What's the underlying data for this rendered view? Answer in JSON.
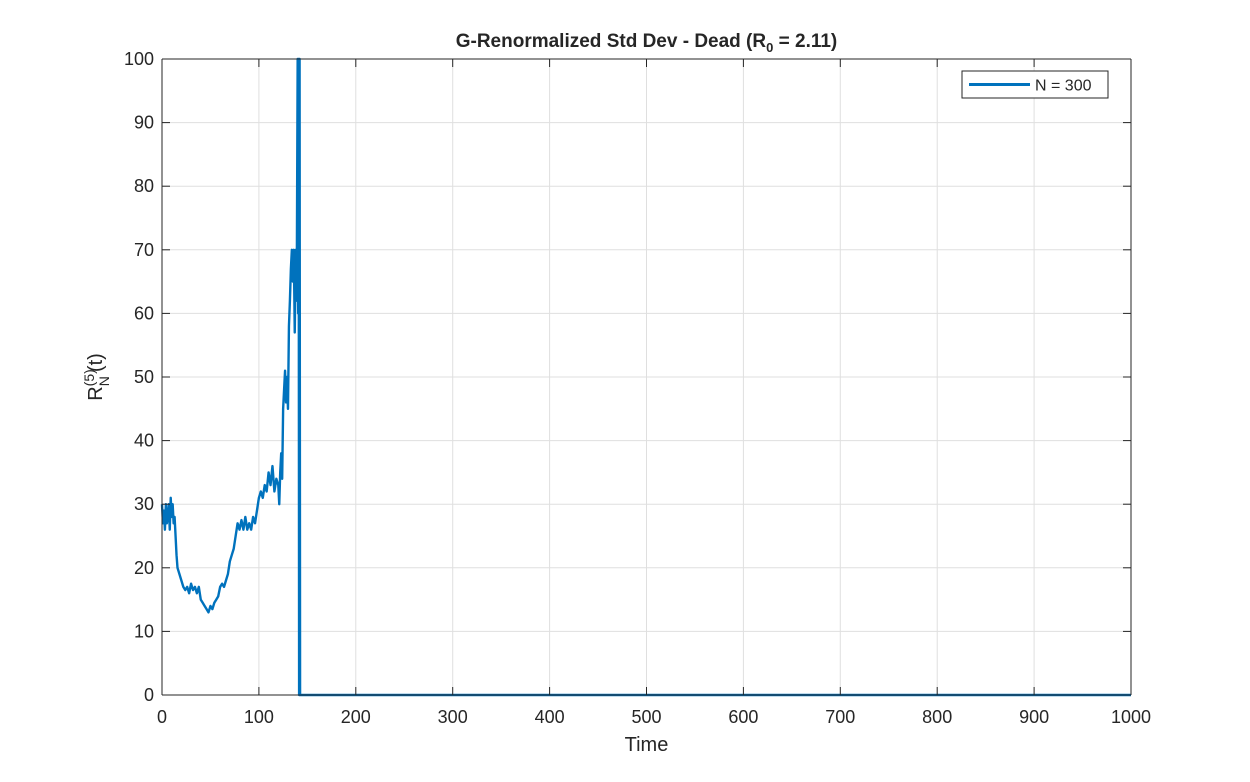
{
  "chart_data": {
    "type": "line",
    "title": {
      "main": "G-Renormalized  Std  Dev  -  Dead  (R",
      "sub": "0",
      "tail": "  =  2.11)"
    },
    "xlabel": "Time",
    "ylabel": {
      "base": "R",
      "sup": "(5)",
      "sub": "N",
      "tail": "(t)"
    },
    "xlim": [
      0,
      1000
    ],
    "ylim": [
      0,
      100
    ],
    "xticks": [
      0,
      100,
      200,
      300,
      400,
      500,
      600,
      700,
      800,
      900,
      1000
    ],
    "yticks": [
      0,
      10,
      20,
      30,
      40,
      50,
      60,
      70,
      80,
      90,
      100
    ],
    "grid": true,
    "legend_position": "top-right",
    "series": [
      {
        "name": "N = 300",
        "color": "#0072BD",
        "x": [
          0,
          1,
          2,
          3,
          4,
          5,
          6,
          7,
          8,
          9,
          10,
          11,
          12,
          13,
          14,
          15,
          16,
          18,
          20,
          22,
          24,
          26,
          28,
          30,
          32,
          34,
          36,
          38,
          40,
          42,
          44,
          46,
          48,
          50,
          52,
          54,
          56,
          58,
          60,
          62,
          64,
          66,
          68,
          70,
          72,
          74,
          76,
          78,
          80,
          82,
          84,
          86,
          88,
          90,
          92,
          94,
          96,
          98,
          100,
          102,
          104,
          106,
          108,
          110,
          112,
          114,
          116,
          118,
          120,
          121,
          122,
          123,
          124,
          125,
          126,
          127,
          128,
          129,
          130,
          131,
          132,
          133,
          134,
          135,
          136,
          137,
          138,
          139,
          140,
          140.5,
          141,
          141.5,
          142,
          142.5,
          143,
          150,
          200,
          300,
          400,
          500,
          600,
          700,
          800,
          900,
          1000
        ],
        "values": [
          30,
          27,
          29,
          26,
          30,
          27,
          28,
          30,
          26,
          31,
          28,
          30,
          27,
          28,
          25,
          22,
          20,
          19,
          18,
          17,
          16.5,
          17,
          16,
          17.5,
          16.5,
          17,
          16,
          17,
          15,
          14.5,
          14,
          13.5,
          13,
          14,
          13.5,
          14.5,
          15,
          15.5,
          17,
          17.5,
          17,
          18,
          19,
          21,
          22,
          23,
          25,
          27,
          26,
          27.5,
          26,
          28,
          26,
          27,
          26,
          28,
          27,
          29,
          31,
          32,
          31,
          33,
          32,
          35,
          33,
          36,
          32,
          34,
          33,
          30,
          35,
          38,
          34,
          45,
          48,
          51,
          46,
          50,
          45,
          58,
          62,
          67,
          70,
          65,
          70,
          57,
          70,
          62,
          100,
          60,
          100,
          0,
          100,
          0,
          0,
          0,
          0,
          0,
          0,
          0,
          0,
          0,
          0,
          0,
          0
        ]
      }
    ]
  }
}
